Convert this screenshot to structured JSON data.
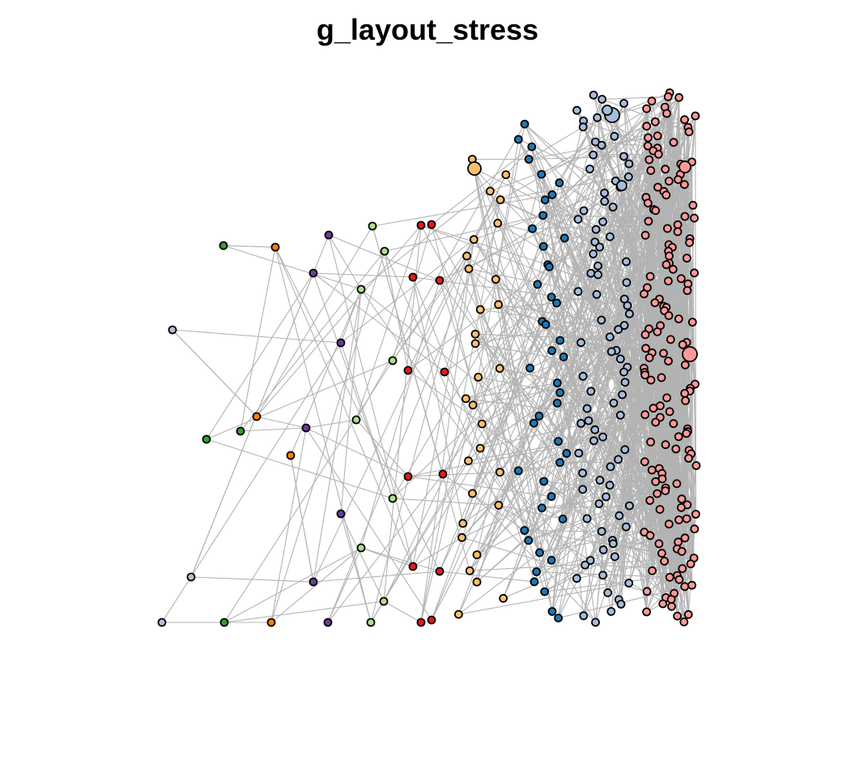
{
  "figure": {
    "title": "g_layout_stress"
  },
  "colors": {
    "edge": "#b3b3b3",
    "node_stroke": "#000000",
    "columns": [
      "#cab2d6",
      "#33a02c",
      "#ff7f00",
      "#6a3d9a",
      "#b2df8a",
      "#e31a1c",
      "#fdbf6f",
      "#1f78b4",
      "#a6bddb",
      "#fb9a99"
    ]
  },
  "graph": {
    "layout": "stress",
    "layer_count": 10,
    "node_groups": [
      {
        "color": "#cab2d6",
        "approx_nodes": 3
      },
      {
        "color": "#33a02c",
        "approx_nodes": 3
      },
      {
        "color": "#ff7f00",
        "approx_nodes": 4
      },
      {
        "color": "#6a3d9a",
        "approx_nodes": 6
      },
      {
        "color": "#b2df8a",
        "approx_nodes": 8
      },
      {
        "color": "#e31a1c",
        "approx_nodes": 14
      },
      {
        "color": "#fdbf6f",
        "approx_nodes": 30
      },
      {
        "color": "#1f78b4",
        "approx_nodes": 45
      },
      {
        "color": "#a6bddb",
        "approx_nodes": 90
      },
      {
        "color": "#fb9a99",
        "approx_nodes": 160
      }
    ]
  }
}
